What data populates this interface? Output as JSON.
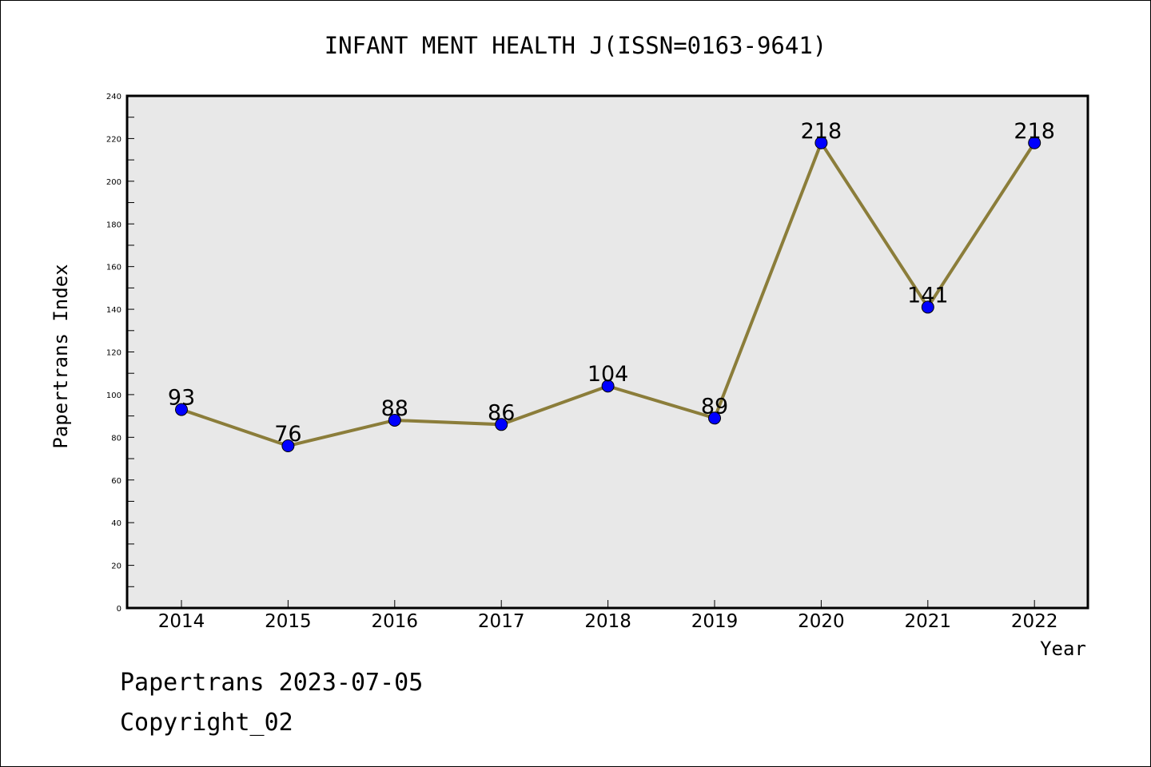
{
  "chart_data": {
    "type": "line",
    "title": "INFANT MENT HEALTH J(ISSN=0163-9641)",
    "xlabel": "Year",
    "ylabel": "Papertrans Index",
    "categories": [
      "2014",
      "2015",
      "2016",
      "2017",
      "2018",
      "2019",
      "2020",
      "2021",
      "2022"
    ],
    "series": [
      {
        "values": [
          93,
          76,
          88,
          86,
          104,
          89,
          218,
          141,
          218
        ]
      }
    ],
    "ylim": [
      0,
      240
    ],
    "yticks": [
      0,
      20,
      40,
      60,
      80,
      100,
      120,
      140,
      160,
      180,
      200,
      220,
      240
    ],
    "grid": false,
    "line_color": "#8b7d3a",
    "marker_color": "#0000ff",
    "plot_background": "#e8e8e8"
  },
  "footer": {
    "line1": "Papertrans 2023-07-05",
    "line2": "Copyright_02"
  }
}
